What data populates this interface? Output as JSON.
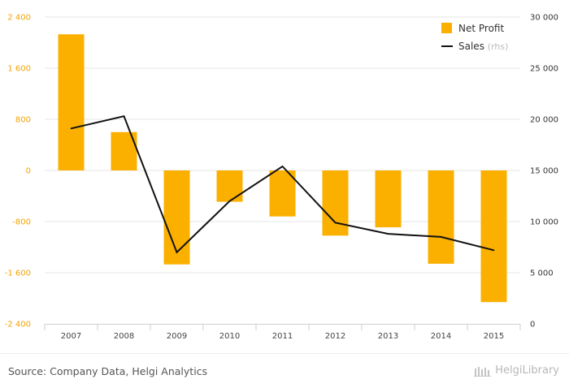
{
  "chart_data": {
    "type": "bar",
    "categories": [
      "2007",
      "2008",
      "2009",
      "2010",
      "2011",
      "2012",
      "2013",
      "2014",
      "2015"
    ],
    "series": [
      {
        "name": "Net Profit",
        "type": "bar",
        "axis": "left",
        "color": "#fbb000",
        "values": [
          2130,
          600,
          -1470,
          -490,
          -720,
          -1020,
          -890,
          -1460,
          -2060
        ]
      },
      {
        "name": "Sales",
        "name_suffix": "(rhs)",
        "type": "line",
        "axis": "right",
        "color": "#111111",
        "values": [
          19100,
          20300,
          7000,
          12000,
          15400,
          9900,
          8800,
          8500,
          7200
        ]
      }
    ],
    "y_left": {
      "ylim": [
        -2400,
        2400
      ],
      "ticks": [
        2400,
        1600,
        800,
        0,
        -800,
        -1600,
        -2400
      ],
      "tick_labels": [
        "2 400",
        "1 600",
        "800",
        "0",
        "-800",
        "-1 600",
        "-2 400"
      ]
    },
    "y_right": {
      "ylim": [
        0,
        30000
      ],
      "ticks": [
        30000,
        25000,
        20000,
        15000,
        10000,
        5000,
        0
      ],
      "tick_labels": [
        "30 000",
        "25 000",
        "20 000",
        "15 000",
        "10 000",
        "5 000",
        "0"
      ]
    },
    "grid": true,
    "legend": "top-right",
    "title": "",
    "xlabel": "",
    "ylabel": ""
  },
  "footer": {
    "source": "Source: Company Data, Helgi Analytics",
    "brand": "HelgiLibrary"
  }
}
